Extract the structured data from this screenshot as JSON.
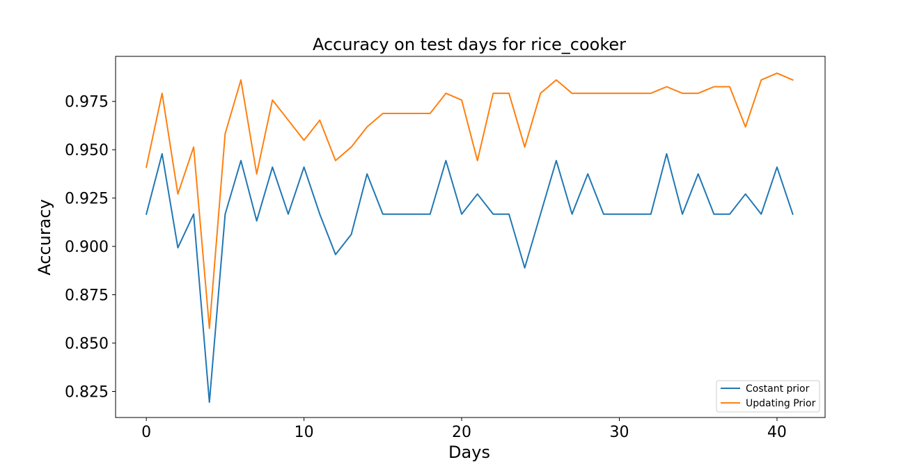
{
  "chart_data": {
    "type": "line",
    "title": "Accuracy on test days for rice_cooker",
    "xlabel": "Days",
    "ylabel": "Accuracy",
    "xlim": [
      -1.95,
      43.05
    ],
    "ylim": [
      0.8115,
      0.9983
    ],
    "xticks": [
      0,
      10,
      20,
      30,
      40
    ],
    "yticks": [
      0.825,
      0.85,
      0.875,
      0.9,
      0.925,
      0.95,
      0.975
    ],
    "ytick_labels": [
      "0.825",
      "0.850",
      "0.875",
      "0.900",
      "0.925",
      "0.950",
      "0.975"
    ],
    "grid": false,
    "legend_position": "lower right",
    "x": [
      0,
      1,
      2,
      3,
      4,
      5,
      6,
      7,
      8,
      9,
      10,
      11,
      12,
      13,
      14,
      15,
      16,
      17,
      18,
      19,
      20,
      21,
      22,
      23,
      24,
      25,
      26,
      27,
      28,
      29,
      30,
      31,
      32,
      33,
      34,
      35,
      36,
      37,
      38,
      39,
      40,
      41
    ],
    "series": [
      {
        "name": "Costant prior",
        "color": "#1f77b4",
        "values": [
          0.9167,
          0.9479,
          0.8993,
          0.9167,
          0.8194,
          0.9167,
          0.9444,
          0.9132,
          0.941,
          0.9167,
          0.941,
          0.9167,
          0.8958,
          0.9062,
          0.9375,
          0.9167,
          0.9167,
          0.9167,
          0.9167,
          0.9444,
          0.9167,
          0.9271,
          0.9167,
          0.9167,
          0.8889,
          0.9167,
          0.9444,
          0.9167,
          0.9375,
          0.9167,
          0.9167,
          0.9167,
          0.9167,
          0.9479,
          0.9167,
          0.9375,
          0.9167,
          0.9167,
          0.9271,
          0.9167,
          0.941,
          0.9167
        ]
      },
      {
        "name": "Updating Prior",
        "color": "#ff7f0e",
        "values": [
          0.941,
          0.9792,
          0.9271,
          0.9514,
          0.8576,
          0.9583,
          0.9861,
          0.9375,
          0.9757,
          0.9653,
          0.9549,
          0.9653,
          0.9444,
          0.9514,
          0.9618,
          0.9688,
          0.9688,
          0.9688,
          0.9688,
          0.9792,
          0.9757,
          0.9444,
          0.9792,
          0.9792,
          0.9514,
          0.9792,
          0.9861,
          0.9792,
          0.9792,
          0.9792,
          0.9792,
          0.9792,
          0.9792,
          0.9826,
          0.9792,
          0.9792,
          0.9826,
          0.9826,
          0.9618,
          0.9861,
          0.9896,
          0.9861
        ]
      }
    ]
  }
}
